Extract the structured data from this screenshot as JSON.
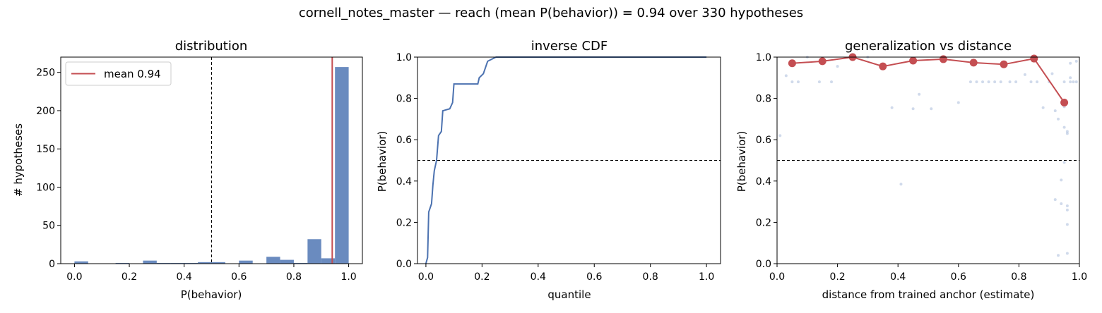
{
  "suptitle": "cornell_notes_master  —  reach (mean P(behavior)) = 0.94  over 330 hypotheses",
  "colors": {
    "bar": "#6a8bbf",
    "line": "#4c72b0",
    "red": "#c44e52",
    "scatter": "#b0c2de",
    "axis": "#000000"
  },
  "chart_data": [
    {
      "type": "bar",
      "title": "distribution",
      "xlabel": "P(behavior)",
      "ylabel": "# hypotheses",
      "xlim": [
        -0.05,
        1.05
      ],
      "ylim": [
        0,
        270
      ],
      "xticks": [
        "0.0",
        "0.2",
        "0.4",
        "0.6",
        "0.8",
        "1.0"
      ],
      "yticks": [
        "0",
        "50",
        "100",
        "150",
        "200",
        "250"
      ],
      "grid": false,
      "bin_width": 0.05,
      "bins": [
        {
          "x0": 0.0,
          "count": 3
        },
        {
          "x0": 0.15,
          "count": 1
        },
        {
          "x0": 0.25,
          "count": 4
        },
        {
          "x0": 0.3,
          "count": 1
        },
        {
          "x0": 0.35,
          "count": 1
        },
        {
          "x0": 0.4,
          "count": 1
        },
        {
          "x0": 0.45,
          "count": 2
        },
        {
          "x0": 0.5,
          "count": 2
        },
        {
          "x0": 0.6,
          "count": 4
        },
        {
          "x0": 0.7,
          "count": 9
        },
        {
          "x0": 0.75,
          "count": 5
        },
        {
          "x0": 0.8,
          "count": 1
        },
        {
          "x0": 0.85,
          "count": 32
        },
        {
          "x0": 0.9,
          "count": 7
        },
        {
          "x0": 0.95,
          "count": 257
        }
      ],
      "mean_line": 0.94,
      "threshold_line": 0.5,
      "legend": {
        "label": "mean 0.94",
        "position": "upper left"
      }
    },
    {
      "type": "line",
      "title": "inverse CDF",
      "xlabel": "quantile",
      "ylabel": "P(behavior)",
      "xlim": [
        -0.03,
        1.05
      ],
      "ylim": [
        0,
        1
      ],
      "xticks": [
        "0.0",
        "0.2",
        "0.4",
        "0.6",
        "0.8",
        "1.0"
      ],
      "yticks": [
        "0.0",
        "0.2",
        "0.4",
        "0.6",
        "0.8",
        "1.0"
      ],
      "threshold_line": 0.5,
      "points": [
        [
          0,
          0
        ],
        [
          0.006,
          0.03
        ],
        [
          0.01,
          0.25
        ],
        [
          0.02,
          0.29
        ],
        [
          0.025,
          0.38
        ],
        [
          0.03,
          0.45
        ],
        [
          0.038,
          0.5
        ],
        [
          0.045,
          0.62
        ],
        [
          0.055,
          0.64
        ],
        [
          0.06,
          0.74
        ],
        [
          0.085,
          0.75
        ],
        [
          0.095,
          0.78
        ],
        [
          0.1,
          0.87
        ],
        [
          0.185,
          0.87
        ],
        [
          0.19,
          0.9
        ],
        [
          0.205,
          0.92
        ],
        [
          0.22,
          0.98
        ],
        [
          0.235,
          0.99
        ],
        [
          0.25,
          1.0
        ],
        [
          1.0,
          1.0
        ]
      ]
    },
    {
      "type": "scatter",
      "title": "generalization vs distance",
      "xlabel": "distance from trained anchor (estimate)",
      "ylabel": "P(behavior)",
      "xlim": [
        0,
        1
      ],
      "ylim": [
        0,
        1
      ],
      "xticks": [
        "0.0",
        "0.2",
        "0.4",
        "0.6",
        "0.8",
        "1.0"
      ],
      "yticks": [
        "0.0",
        "0.2",
        "0.4",
        "0.6",
        "0.8",
        "1.0"
      ],
      "threshold_line": 0.5,
      "means": [
        [
          0.05,
          0.97
        ],
        [
          0.15,
          0.98
        ],
        [
          0.25,
          1.0
        ],
        [
          0.35,
          0.955
        ],
        [
          0.45,
          0.983
        ],
        [
          0.55,
          0.99
        ],
        [
          0.65,
          0.973
        ],
        [
          0.75,
          0.965
        ],
        [
          0.85,
          0.993
        ],
        [
          0.95,
          0.78
        ]
      ],
      "points": [
        [
          0.01,
          0.62
        ],
        [
          0.03,
          0.91
        ],
        [
          0.05,
          0.88
        ],
        [
          0.07,
          0.88
        ],
        [
          0.1,
          1.0
        ],
        [
          0.14,
          0.88
        ],
        [
          0.18,
          0.88
        ],
        [
          0.2,
          0.955
        ],
        [
          0.3,
          1.0
        ],
        [
          0.38,
          0.755
        ],
        [
          0.41,
          0.385
        ],
        [
          0.45,
          0.75
        ],
        [
          0.47,
          0.82
        ],
        [
          0.51,
          0.75
        ],
        [
          0.6,
          0.78
        ],
        [
          0.64,
          0.88
        ],
        [
          0.66,
          0.88
        ],
        [
          0.68,
          0.88
        ],
        [
          0.7,
          0.88
        ],
        [
          0.72,
          0.88
        ],
        [
          0.74,
          0.88
        ],
        [
          0.77,
          0.88
        ],
        [
          0.79,
          0.88
        ],
        [
          0.82,
          0.915
        ],
        [
          0.84,
          0.88
        ],
        [
          0.86,
          0.88
        ],
        [
          0.88,
          0.755
        ],
        [
          0.9,
          0.88
        ],
        [
          0.91,
          0.92
        ],
        [
          0.92,
          0.74
        ],
        [
          0.92,
          0.31
        ],
        [
          0.93,
          0.7
        ],
        [
          0.93,
          0.04
        ],
        [
          0.94,
          0.29
        ],
        [
          0.94,
          0.405
        ],
        [
          0.95,
          0.76
        ],
        [
          0.95,
          0.66
        ],
        [
          0.95,
          0.49
        ],
        [
          0.95,
          0.88
        ],
        [
          0.96,
          0.63
        ],
        [
          0.96,
          0.64
        ],
        [
          0.96,
          0.28
        ],
        [
          0.96,
          0.26
        ],
        [
          0.96,
          0.19
        ],
        [
          0.96,
          0.05
        ],
        [
          0.97,
          0.9
        ],
        [
          0.97,
          0.88
        ],
        [
          0.98,
          0.88
        ],
        [
          0.99,
          0.88
        ],
        [
          0.99,
          0.98
        ],
        [
          0.97,
          0.97
        ]
      ]
    }
  ]
}
